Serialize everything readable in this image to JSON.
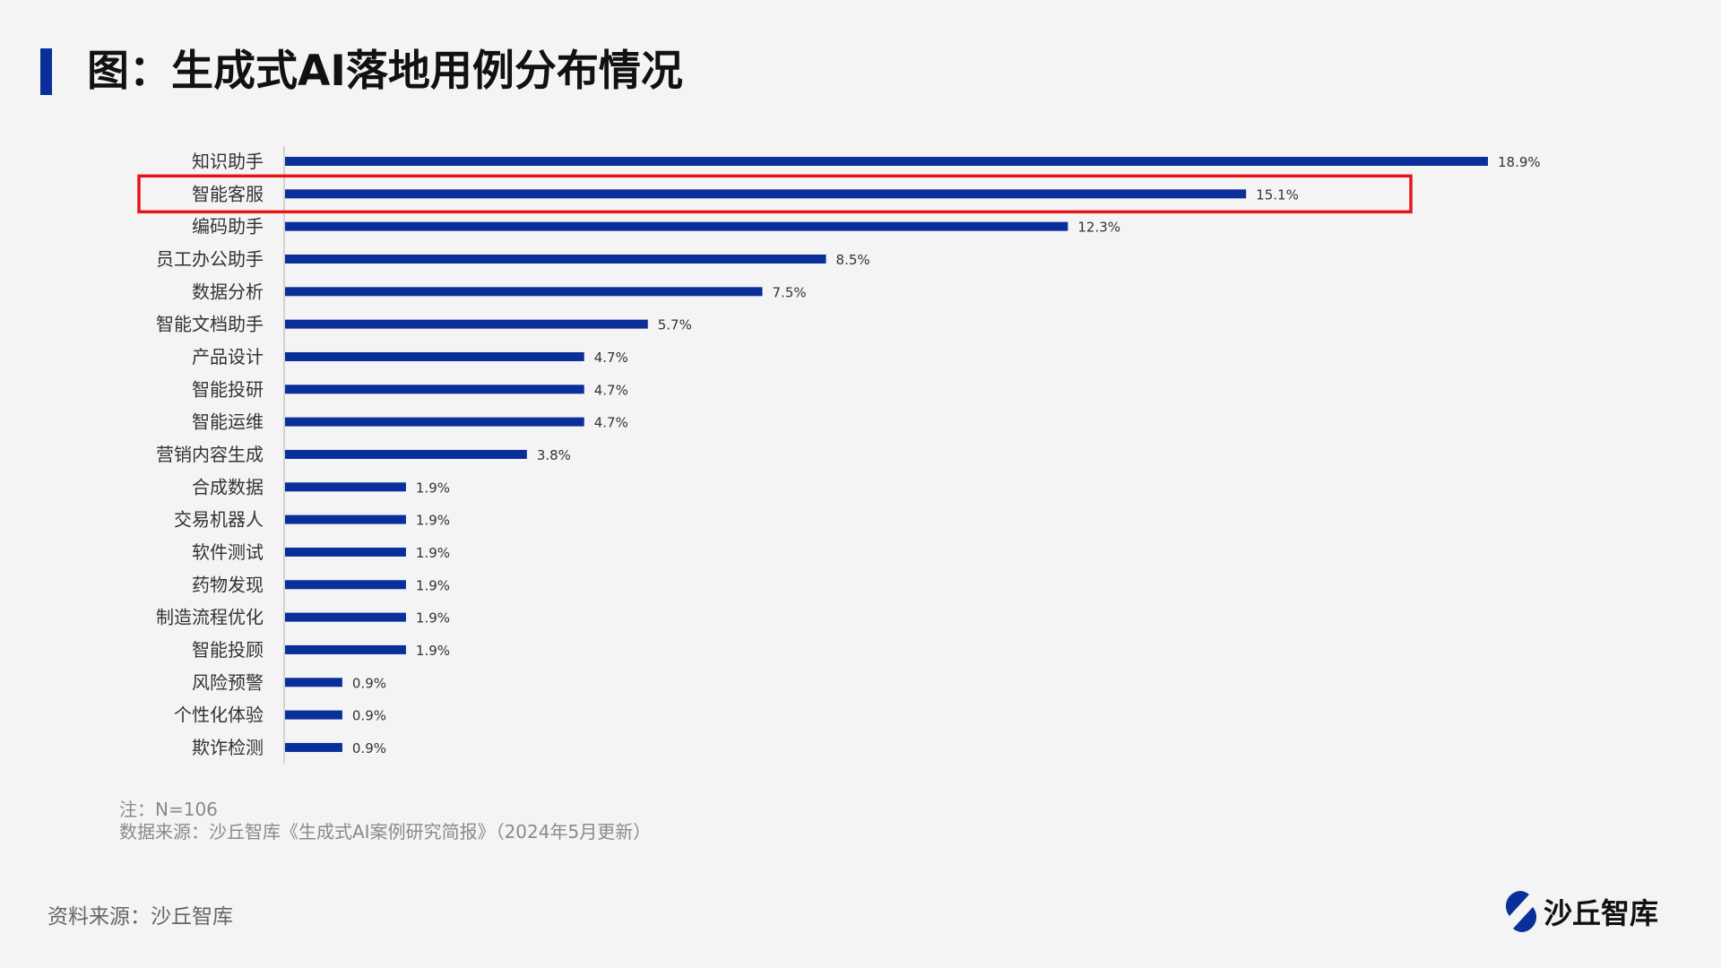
{
  "title": "图：生成式AI落地用例分布情况",
  "chart_data": {
    "type": "bar",
    "orientation": "horizontal",
    "title": "图：生成式AI落地用例分布情况",
    "categories": [
      "知识助手",
      "智能客服",
      "编码助手",
      "员工办公助手",
      "数据分析",
      "智能文档助手",
      "产品设计",
      "智能投研",
      "智能运维",
      "营销内容生成",
      "合成数据",
      "交易机器人",
      "软件测试",
      "药物发现",
      "制造流程优化",
      "智能投顾",
      "风险预警",
      "个性化体验",
      "欺诈检测"
    ],
    "values": [
      18.9,
      15.1,
      12.3,
      8.5,
      7.5,
      5.7,
      4.7,
      4.7,
      4.7,
      3.8,
      1.9,
      1.9,
      1.9,
      1.9,
      1.9,
      1.9,
      0.9,
      0.9,
      0.9
    ],
    "value_labels": [
      "18.9%",
      "15.1%",
      "12.3%",
      "8.5%",
      "7.5%",
      "5.7%",
      "4.7%",
      "4.7%",
      "4.7%",
      "3.8%",
      "1.9%",
      "1.9%",
      "1.9%",
      "1.9%",
      "1.9%",
      "1.9%",
      "0.9%",
      "0.9%",
      "0.9%"
    ],
    "unit": "%",
    "highlighted_category": "智能客服",
    "bar_color": "#0a2f9a",
    "highlight_color": "#e8141b",
    "xlim": [
      0,
      18.9
    ],
    "grid": false
  },
  "notes": {
    "n": "注：N=106",
    "source": "数据来源：沙丘智库《生成式AI案例研究简报》（2024年5月更新）"
  },
  "footer": {
    "source": "资料来源：沙丘智库",
    "logo_text": "沙丘智库"
  }
}
